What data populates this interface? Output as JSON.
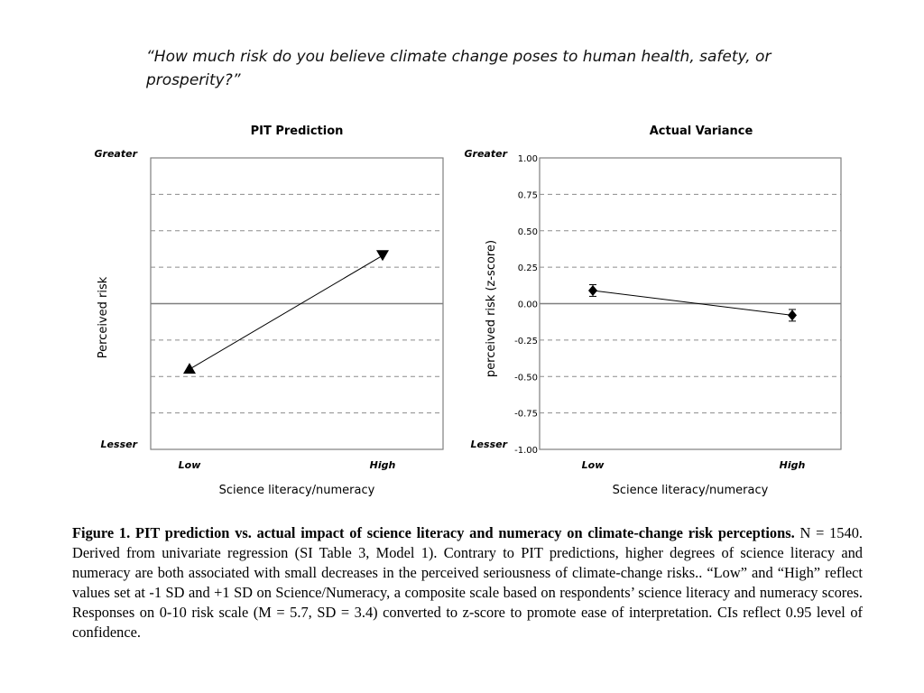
{
  "question": "“How much risk do you believe climate change poses to human health, safety, or prosperity?”",
  "chart_data": [
    {
      "type": "line",
      "title": "PIT Prediction",
      "ylabel": "Perceived risk",
      "xlabel": "Science literacy/numeracy",
      "y_top_label": "Greater",
      "y_bottom_label": "Lesser",
      "categories": [
        "Low",
        "High"
      ],
      "ylim": [
        -1,
        1
      ],
      "y_gridlines": [
        0.75,
        0.5,
        0.25,
        -0.25,
        -0.5,
        -0.75
      ],
      "values": [
        -0.45,
        0.33
      ],
      "markers": [
        "triangle-up",
        "triangle-down"
      ],
      "grid": true
    },
    {
      "type": "line",
      "title": "Actual Variance",
      "ylabel": "perceived risk (z-score)",
      "xlabel": "Science literacy/numeracy",
      "y_top_label": "Greater",
      "y_bottom_label": "Lesser",
      "categories": [
        "Low",
        "High"
      ],
      "ylim": [
        -1,
        1
      ],
      "yticks": [
        "1.00",
        "0.75",
        "0.50",
        "0.25",
        "0.00",
        "-0.25",
        "-0.50",
        "-0.75",
        "-1.00"
      ],
      "y_gridlines": [
        0.75,
        0.5,
        0.25,
        -0.25,
        -0.5,
        -0.75
      ],
      "values": [
        0.09,
        -0.08
      ],
      "ci": [
        [
          0.05,
          0.13
        ],
        [
          -0.12,
          -0.04
        ]
      ],
      "markers": [
        "diamond",
        "diamond"
      ],
      "grid": true
    }
  ],
  "caption": {
    "lead": "Figure 1. PIT prediction vs. actual impact of science literacy and numeracy on climate-change risk perceptions.",
    "body": " N = 1540. Derived from univariate regression (SI Table 3, Model 1). Contrary to PIT predictions, higher degrees of science literacy and numeracy are both associated with small decreases in the perceived seriousness of climate-change risks.. “Low” and “High” reflect values set at -1 SD and +1 SD on Science/Numeracy, a composite scale based on respondents’ science literacy and numeracy scores. Responses on 0-10 risk scale (M = 5.7, SD = 3.4) converted to z-score to promote ease of interpretation. CIs reflect 0.95 level of confidence."
  }
}
